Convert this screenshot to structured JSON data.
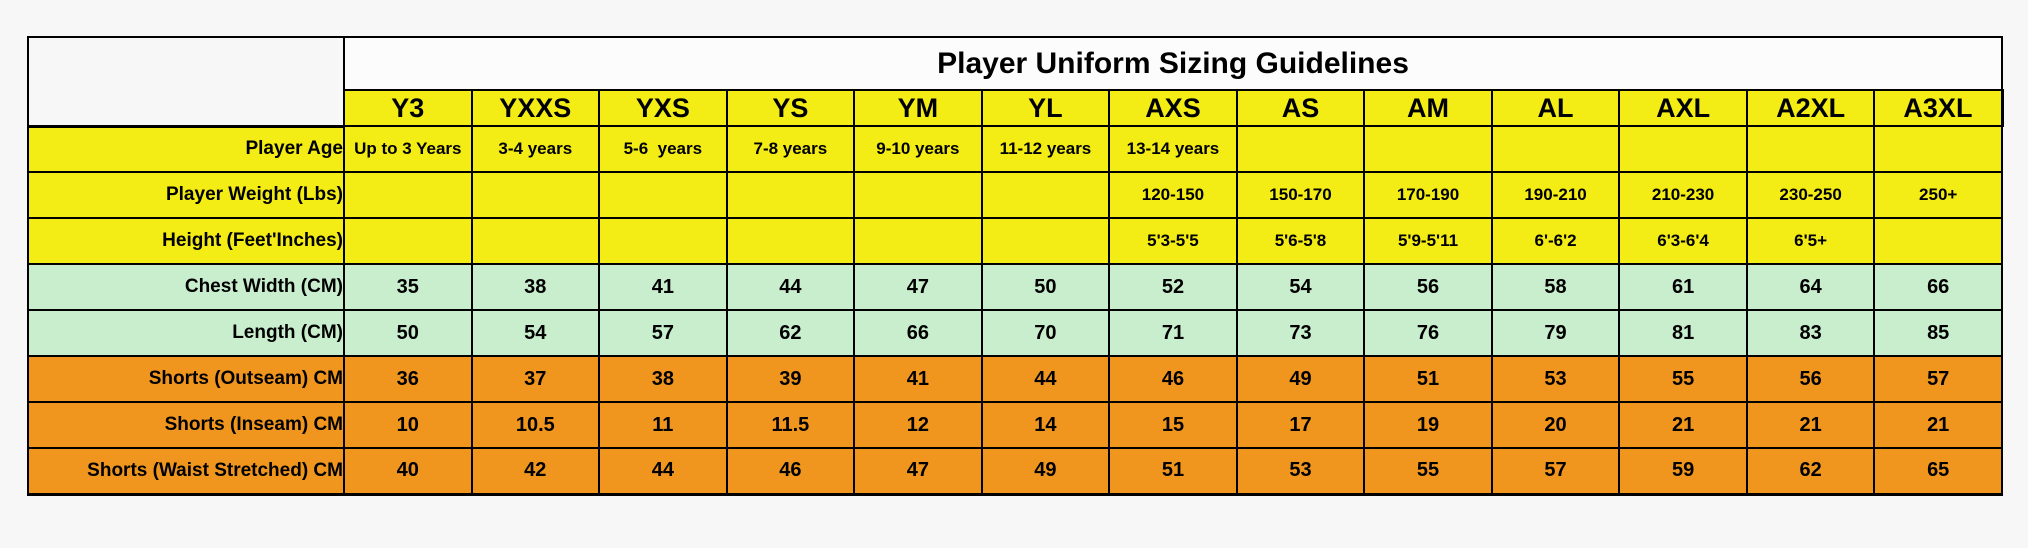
{
  "title": "Player Uniform Sizing Guidelines",
  "colors": {
    "yellow": "#f3ec15",
    "green": "#c9eecd",
    "orange": "#f0961e",
    "title_bg": "#fcfcfc",
    "border": "#000000",
    "page_bg": "#f7f7f7"
  },
  "columns": [
    "Y3",
    "YXXS",
    "YXS",
    "YS",
    "YM",
    "YL",
    "AXS",
    "AS",
    "AM",
    "AL",
    "AXL",
    "A2XL",
    "A3XL"
  ],
  "rows": [
    {
      "label": "Player Age",
      "color": "yellow",
      "text_size": "small",
      "values": [
        "Up to 3 Years",
        "3-4 years",
        "5-6  years",
        "7-8 years",
        "9-10 years",
        "11-12 years",
        "13-14 years",
        "",
        "",
        "",
        "",
        "",
        ""
      ]
    },
    {
      "label": "Player Weight (Lbs)",
      "color": "yellow",
      "text_size": "small",
      "values": [
        "",
        "",
        "",
        "",
        "",
        "",
        "120-150",
        "150-170",
        "170-190",
        "190-210",
        "210-230",
        "230-250",
        "250+"
      ]
    },
    {
      "label": "Height (Feet'Inches)",
      "color": "yellow",
      "text_size": "small",
      "values": [
        "",
        "",
        "",
        "",
        "",
        "",
        "5'3-5'5",
        "5'6-5'8",
        "5'9-5'11",
        "6'-6'2",
        "6'3-6'4",
        "6'5+",
        ""
      ]
    },
    {
      "label": "Chest Width (CM)",
      "color": "green",
      "text_size": "num",
      "values": [
        "35",
        "38",
        "41",
        "44",
        "47",
        "50",
        "52",
        "54",
        "56",
        "58",
        "61",
        "64",
        "66"
      ]
    },
    {
      "label": "Length (CM)",
      "color": "green",
      "text_size": "num",
      "values": [
        "50",
        "54",
        "57",
        "62",
        "66",
        "70",
        "71",
        "73",
        "76",
        "79",
        "81",
        "83",
        "85"
      ]
    },
    {
      "label": "Shorts (Outseam) CM",
      "color": "orange",
      "text_size": "num",
      "values": [
        "36",
        "37",
        "38",
        "39",
        "41",
        "44",
        "46",
        "49",
        "51",
        "53",
        "55",
        "56",
        "57"
      ]
    },
    {
      "label": "Shorts (Inseam) CM",
      "color": "orange",
      "text_size": "num",
      "values": [
        "10",
        "10.5",
        "11",
        "11.5",
        "12",
        "14",
        "15",
        "17",
        "19",
        "20",
        "21",
        "21",
        "21"
      ]
    },
    {
      "label": "Shorts (Waist Stretched) CM",
      "color": "orange",
      "text_size": "num",
      "values": [
        "40",
        "42",
        "44",
        "46",
        "47",
        "49",
        "51",
        "53",
        "55",
        "57",
        "59",
        "62",
        "65"
      ]
    }
  ]
}
